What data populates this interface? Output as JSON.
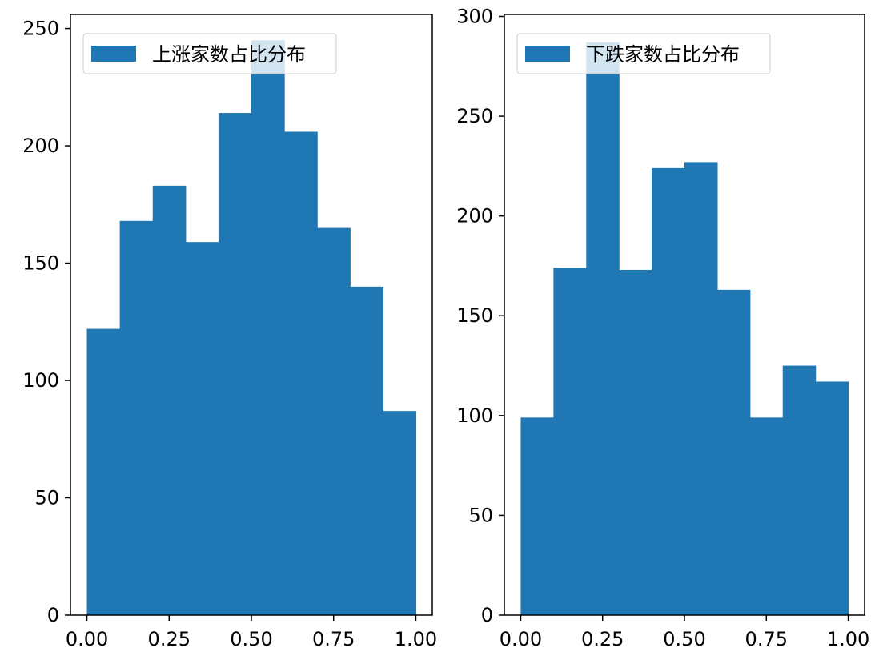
{
  "colors": {
    "bar": "#1f77b4",
    "axis": "#000000",
    "background": "#ffffff"
  },
  "chart_data": [
    {
      "type": "bar",
      "title": "",
      "xlabel": "",
      "ylabel": "",
      "xlim": [
        -0.05,
        1.05
      ],
      "ylim": [
        0,
        256
      ],
      "x_ticks": [
        "0.00",
        "0.25",
        "0.50",
        "0.75",
        "1.00"
      ],
      "y_ticks": [
        "0",
        "50",
        "100",
        "150",
        "200",
        "250"
      ],
      "legend": {
        "label": "上涨家数占比分布",
        "position": "upper left"
      },
      "bin_edges": [
        0.0,
        0.1,
        0.2,
        0.3,
        0.4,
        0.5,
        0.6,
        0.7,
        0.8,
        0.9,
        1.0
      ],
      "values": [
        122,
        168,
        183,
        159,
        214,
        245,
        206,
        165,
        140,
        87
      ]
    },
    {
      "type": "bar",
      "title": "",
      "xlabel": "",
      "ylabel": "",
      "xlim": [
        -0.05,
        1.05
      ],
      "ylim": [
        0,
        301
      ],
      "x_ticks": [
        "0.00",
        "0.25",
        "0.50",
        "0.75",
        "1.00"
      ],
      "y_ticks": [
        "0",
        "50",
        "100",
        "150",
        "200",
        "250",
        "300"
      ],
      "legend": {
        "label": "下跌家数占比分布",
        "position": "upper left"
      },
      "bin_edges": [
        0.0,
        0.1,
        0.2,
        0.3,
        0.4,
        0.5,
        0.6,
        0.7,
        0.8,
        0.9,
        1.0
      ],
      "values": [
        99,
        174,
        287,
        173,
        224,
        227,
        163,
        99,
        125,
        117
      ]
    }
  ]
}
